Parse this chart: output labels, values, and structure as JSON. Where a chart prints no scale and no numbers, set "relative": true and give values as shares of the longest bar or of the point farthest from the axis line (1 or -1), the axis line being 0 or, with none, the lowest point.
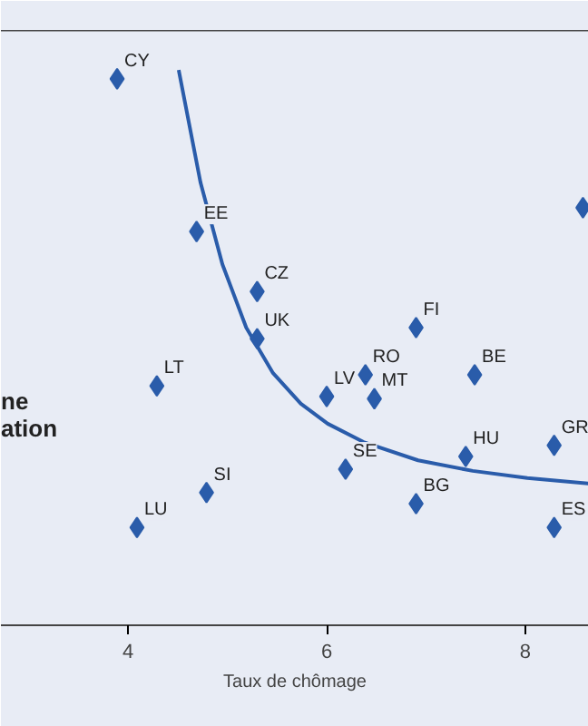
{
  "chart_data": {
    "type": "scatter",
    "relative": true,
    "xlabel": "Taux de chômage",
    "xlim": [
      2.72,
      8.64
    ],
    "xticks": [
      4,
      6,
      8
    ],
    "series": [
      {
        "marker": "diamond",
        "color": "#2a5caa",
        "x": [
          3.89,
          8.58,
          4.69,
          5.3,
          5.3,
          4.29,
          6.0,
          6.39,
          6.9,
          6.48,
          7.49,
          7.4,
          8.29,
          6.19,
          6.9,
          8.29,
          4.79,
          4.09
        ],
        "values": [
          0.984,
          0.752,
          0.709,
          0.601,
          0.516,
          0.431,
          0.412,
          0.451,
          0.536,
          0.408,
          0.451,
          0.304,
          0.324,
          0.281,
          0.219,
          0.176,
          0.239,
          0.176
        ]
      },
      {
        "type": "line",
        "marker": "none",
        "color": "#2a5caa",
        "x": [
          4.51,
          4.73,
          4.95,
          5.19,
          5.46,
          5.74,
          6.01,
          6.37,
          6.92,
          7.47,
          8.02,
          8.64
        ],
        "values": [
          1.0,
          0.797,
          0.65,
          0.536,
          0.454,
          0.399,
          0.363,
          0.33,
          0.297,
          0.278,
          0.265,
          0.255
        ]
      }
    ],
    "annotations": [
      {
        "text": "CY",
        "x": 3.89,
        "y": 0.984
      },
      {
        "text": "EE",
        "x": 4.69,
        "y": 0.709
      },
      {
        "text": "CZ",
        "x": 5.3,
        "y": 0.601
      },
      {
        "text": "UK",
        "x": 5.3,
        "y": 0.516
      },
      {
        "text": "LT",
        "x": 4.29,
        "y": 0.431
      },
      {
        "text": "LV",
        "x": 6.0,
        "y": 0.412
      },
      {
        "text": "RO",
        "x": 6.39,
        "y": 0.451
      },
      {
        "text": "FI",
        "x": 6.9,
        "y": 0.536
      },
      {
        "text": "MT",
        "x": 6.48,
        "y": 0.408
      },
      {
        "text": "BE",
        "x": 7.49,
        "y": 0.451
      },
      {
        "text": "HU",
        "x": 7.4,
        "y": 0.304
      },
      {
        "text": "GR",
        "x": 8.29,
        "y": 0.324
      },
      {
        "text": "SE",
        "x": 6.19,
        "y": 0.281
      },
      {
        "text": "BG",
        "x": 6.9,
        "y": 0.219
      },
      {
        "text": "ES",
        "x": 8.29,
        "y": 0.176
      },
      {
        "text": "SI",
        "x": 4.79,
        "y": 0.239
      },
      {
        "text": "LU",
        "x": 4.09,
        "y": 0.176
      },
      "ne",
      "ation"
    ]
  }
}
